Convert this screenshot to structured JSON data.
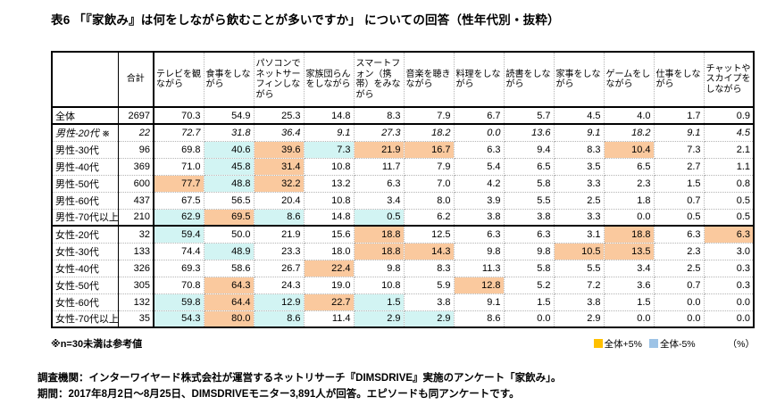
{
  "title": "表6 「『家飲み』は何をしながら飲むことが多いですか」 についての回答（性年代別・抜粋）",
  "footnote": "※n=30未満は参考値",
  "legend": {
    "plus_label": "全体+5%",
    "minus_label": "全体-5%",
    "unit": "（%）",
    "plus_swatch_color": "#FFC000",
    "minus_swatch_color": "#9DC3E6"
  },
  "highlight_colors": {
    "plus_bg": "#FAC99E",
    "minus_bg": "#D2F4F3"
  },
  "source_lines": {
    "line1": "調査機関：インターワイヤード株式会社が運営するネットリサーチ『DIMSDRIVE』実施のアンケート「家飲み」。",
    "line2": "期間：2017年8月2日～8月25日、DIMSDRIVEモニター3,891人が回答。エピソードも同アンケートです。"
  },
  "chart_data": {
    "type": "table",
    "title": "「『家飲み』は何をしながら飲むことが多いですか」 についての回答（性年代別・抜粋）",
    "unit": "%",
    "corner_label": "",
    "n_column_label": "合計",
    "columns": [
      "テレビを観ながら",
      "食事をしながら",
      "パソコンでネットサーフィンしながら",
      "家族団らんをしながら",
      "スマートフォン（携帯）をみながら",
      "音楽を聴きながら",
      "料理をしながら",
      "読書をしながら",
      "家事をしながら",
      "ゲームをしながら",
      "仕事をしながら",
      "チャットやスカイプをしながら"
    ],
    "highlight_legend": {
      "o": "全体+5%",
      "c": "全体-5%"
    },
    "rows": [
      {
        "label": "全体",
        "n": "2697",
        "italic": false,
        "section_end": true,
        "values": [
          "70.3",
          "54.9",
          "25.3",
          "14.8",
          "8.3",
          "7.9",
          "6.7",
          "5.7",
          "4.5",
          "4.0",
          "1.7",
          "0.9"
        ],
        "marks": [
          "",
          "",
          "",
          "",
          "",
          "",
          "",
          "",
          "",
          "",
          "",
          ""
        ]
      },
      {
        "label": "男性-20代 ※",
        "n": "22",
        "italic": true,
        "section_end": false,
        "values": [
          "72.7",
          "31.8",
          "36.4",
          "9.1",
          "27.3",
          "18.2",
          "0.0",
          "13.6",
          "9.1",
          "18.2",
          "9.1",
          "4.5"
        ],
        "marks": [
          "",
          "",
          "",
          "",
          "",
          "",
          "",
          "",
          "",
          "",
          "",
          ""
        ]
      },
      {
        "label": "男性-30代",
        "n": "96",
        "italic": false,
        "section_end": false,
        "values": [
          "69.8",
          "40.6",
          "39.6",
          "7.3",
          "21.9",
          "16.7",
          "6.3",
          "9.4",
          "8.3",
          "10.4",
          "7.3",
          "2.1"
        ],
        "marks": [
          "",
          "c",
          "o",
          "c",
          "o",
          "o",
          "",
          "",
          "",
          "o",
          "",
          ""
        ]
      },
      {
        "label": "男性-40代",
        "n": "369",
        "italic": false,
        "section_end": false,
        "values": [
          "71.0",
          "45.8",
          "31.4",
          "10.8",
          "11.7",
          "7.9",
          "5.4",
          "6.5",
          "3.5",
          "6.5",
          "2.7",
          "1.1"
        ],
        "marks": [
          "",
          "c",
          "o",
          "",
          "",
          "",
          "",
          "",
          "",
          "",
          "",
          ""
        ]
      },
      {
        "label": "男性-50代",
        "n": "600",
        "italic": false,
        "section_end": false,
        "values": [
          "77.7",
          "48.8",
          "32.2",
          "13.2",
          "6.3",
          "7.0",
          "4.2",
          "5.8",
          "3.3",
          "2.3",
          "1.5",
          "0.8"
        ],
        "marks": [
          "o",
          "c",
          "o",
          "",
          "",
          "",
          "",
          "",
          "",
          "",
          "",
          ""
        ]
      },
      {
        "label": "男性-60代",
        "n": "437",
        "italic": false,
        "section_end": false,
        "values": [
          "67.5",
          "56.5",
          "20.4",
          "10.8",
          "3.4",
          "8.0",
          "3.9",
          "5.5",
          "2.5",
          "1.8",
          "0.7",
          "0.5"
        ],
        "marks": [
          "",
          "",
          "",
          "",
          "",
          "",
          "",
          "",
          "",
          "",
          "",
          ""
        ]
      },
      {
        "label": "男性-70代以上",
        "n": "210",
        "italic": false,
        "section_end": true,
        "values": [
          "62.9",
          "69.5",
          "8.6",
          "14.8",
          "0.5",
          "6.2",
          "3.8",
          "3.8",
          "3.3",
          "0.0",
          "0.5",
          "0.5"
        ],
        "marks": [
          "c",
          "o",
          "c",
          "",
          "c",
          "",
          "",
          "",
          "",
          "",
          "",
          ""
        ]
      },
      {
        "label": "女性-20代",
        "n": "32",
        "italic": false,
        "section_end": false,
        "values": [
          "59.4",
          "50.0",
          "21.9",
          "15.6",
          "18.8",
          "12.5",
          "6.3",
          "6.3",
          "3.1",
          "18.8",
          "6.3",
          "6.3"
        ],
        "marks": [
          "c",
          "",
          "",
          "",
          "o",
          "",
          "",
          "",
          "",
          "o",
          "",
          "o"
        ]
      },
      {
        "label": "女性-30代",
        "n": "133",
        "italic": false,
        "section_end": false,
        "values": [
          "74.4",
          "48.9",
          "23.3",
          "18.0",
          "18.8",
          "14.3",
          "9.8",
          "9.8",
          "10.5",
          "13.5",
          "2.3",
          "3.0"
        ],
        "marks": [
          "",
          "c",
          "",
          "",
          "o",
          "o",
          "",
          "",
          "o",
          "o",
          "",
          ""
        ]
      },
      {
        "label": "女性-40代",
        "n": "326",
        "italic": false,
        "section_end": false,
        "values": [
          "69.3",
          "58.6",
          "26.7",
          "22.4",
          "9.8",
          "8.3",
          "11.3",
          "5.8",
          "5.5",
          "3.4",
          "2.5",
          "0.3"
        ],
        "marks": [
          "",
          "",
          "",
          "o",
          "",
          "",
          "",
          "",
          "",
          "",
          "",
          ""
        ]
      },
      {
        "label": "女性-50代",
        "n": "305",
        "italic": false,
        "section_end": false,
        "values": [
          "70.8",
          "64.3",
          "24.3",
          "19.0",
          "10.8",
          "5.9",
          "12.8",
          "5.2",
          "7.2",
          "3.6",
          "0.7",
          "0.3"
        ],
        "marks": [
          "",
          "o",
          "",
          "",
          "",
          "",
          "o",
          "",
          "",
          "",
          "",
          ""
        ]
      },
      {
        "label": "女性-60代",
        "n": "132",
        "italic": false,
        "section_end": false,
        "values": [
          "59.8",
          "64.4",
          "12.9",
          "22.7",
          "1.5",
          "3.8",
          "9.1",
          "1.5",
          "3.8",
          "1.5",
          "0.0",
          "0.0"
        ],
        "marks": [
          "c",
          "o",
          "c",
          "o",
          "c",
          "",
          "",
          "",
          "",
          "",
          "",
          ""
        ]
      },
      {
        "label": "女性-70代以上",
        "n": "35",
        "italic": false,
        "section_end": false,
        "values": [
          "54.3",
          "80.0",
          "8.6",
          "11.4",
          "2.9",
          "2.9",
          "8.6",
          "0.0",
          "2.9",
          "0.0",
          "0.0",
          "0.0"
        ],
        "marks": [
          "c",
          "o",
          "c",
          "",
          "c",
          "c",
          "",
          "",
          "",
          "",
          "",
          ""
        ]
      }
    ]
  }
}
